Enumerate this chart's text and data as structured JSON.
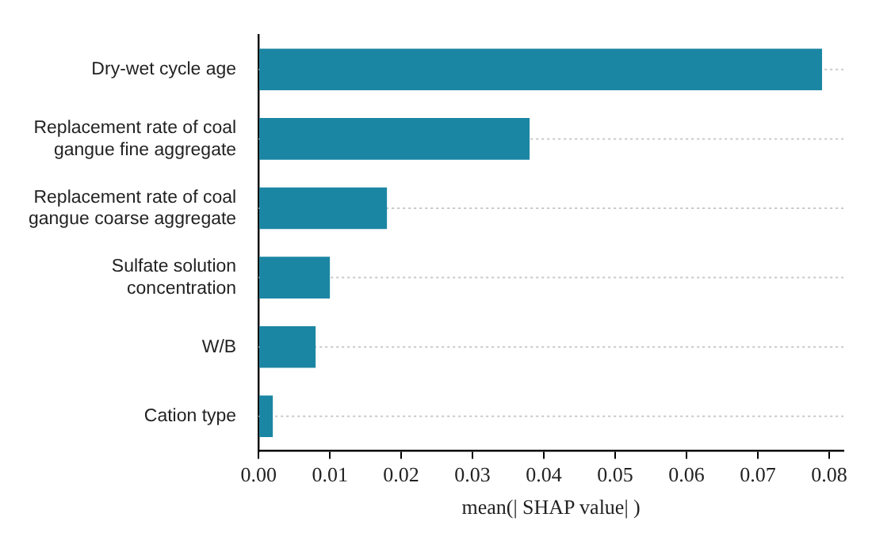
{
  "chart_data": {
    "type": "bar",
    "orientation": "horizontal",
    "xlabel": "mean(| SHAP value| )",
    "categories": [
      "Dry-wet cycle age",
      "Replacement rate of coal gangue fine aggregate",
      "Replacement rate of coal gangue coarse aggregate",
      "Sulfate solution concentration",
      "W/B",
      "Cation type"
    ],
    "values": [
      0.079,
      0.038,
      0.018,
      0.01,
      0.008,
      0.002
    ],
    "color": "#1b86a3",
    "xlim": [
      0,
      0.082
    ],
    "xticks": [
      {
        "value": 0,
        "label": "0.00"
      },
      0.01,
      0.02,
      0.03,
      0.04,
      0.05,
      0.06,
      0.07,
      0.08
    ],
    "grid": "y",
    "legend": false
  }
}
